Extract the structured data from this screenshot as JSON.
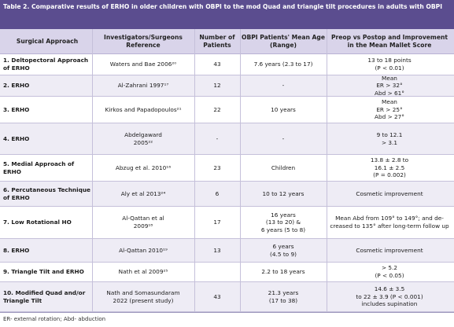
{
  "caption": {
    "label": "Table 2.",
    "text": "Comparative results of ERHO in older children with OBPI to the mod Quad and triangle tilt procedures in adults with OBPI"
  },
  "headers": [
    "Surgical Approach",
    "Investigators/Surgeons Reference",
    "Number of Patients",
    "OBPI Patients' Mean Age (Range)",
    "Preop vs Postop and Improvement in the Mean Mallet Score"
  ],
  "rows": [
    {
      "approach": [
        "1. Deltopectoral Approach",
        "of ERHO"
      ],
      "investigators": [
        "Waters and Bae 2006²⁰"
      ],
      "patients": "43",
      "age": [
        "7.6 years (2.3 to 17)"
      ],
      "result": [
        "13 to 18 points",
        "(P < 0.01)"
      ]
    },
    {
      "approach": [
        "2. ERHO"
      ],
      "investigators": [
        "Al-Zahrani 1997¹⁷"
      ],
      "patients": "12",
      "age": [
        "-"
      ],
      "result": [
        "Mean",
        "ER > 32°",
        "Abd > 61°"
      ]
    },
    {
      "approach": [
        "3. ERHO"
      ],
      "investigators": [
        "Kirkos and Papadopoulos²¹"
      ],
      "patients": "22",
      "age": [
        "10 years"
      ],
      "result": [
        "Mean",
        "ER > 25°",
        "Abd > 27°"
      ]
    },
    {
      "approach": [
        "4. ERHO"
      ],
      "investigators": [
        "Abdelgaward",
        "2005²²"
      ],
      "patients": "-",
      "age": [
        "-"
      ],
      "result": [
        "9 to 12.1",
        "> 3.1"
      ]
    },
    {
      "approach": [
        "5. Medial Approach of",
        "ERHO"
      ],
      "investigators": [
        "Abzug et al. 2010¹⁶"
      ],
      "patients": "23",
      "age": [
        "Children"
      ],
      "result": [
        "13.8 ± 2.8 to",
        "16.1 ± 2.5",
        "(P = 0.002)"
      ]
    },
    {
      "approach": [
        "6. Percutaneous Technique",
        "of ERHO"
      ],
      "investigators": [
        "Aly et al 2013²⁴"
      ],
      "patients": "6",
      "age": [
        "10 to 12 years"
      ],
      "result": [
        "Cosmetic improvement"
      ]
    },
    {
      "approach": [
        "7. Low Rotational HO"
      ],
      "investigators": [
        "Al-Qattan et al",
        "2009¹⁸"
      ],
      "patients": "17",
      "age": [
        "16 years",
        "(13 to 20) &",
        "6 years (5 to 8)"
      ],
      "result": [
        "Mean Abd from 109° to 149°; and de-",
        "creased to 135° after long-term follow up"
      ]
    },
    {
      "approach": [
        "8. ERHO"
      ],
      "investigators": [
        "Al-Qattan 2010¹⁹"
      ],
      "patients": "13",
      "age": [
        "6 years",
        "(4.5 to 9)"
      ],
      "result": [
        "Cosmetic improvement"
      ]
    },
    {
      "approach": [
        "9. Triangle Tilt and ERHO"
      ],
      "investigators": [
        "Nath et al 2009²⁵"
      ],
      "patients": "",
      "age": [
        "2.2 to 18 years"
      ],
      "result": [
        "> 5.2",
        "(P < 0.05)"
      ]
    },
    {
      "approach": [
        "10. Modified Quad and/or",
        "Triangle Tilt"
      ],
      "investigators": [
        "Nath and Somasundaram",
        "2022 (present study)"
      ],
      "patients": "43",
      "age": [
        "21.3 years",
        "(17 to 38)"
      ],
      "result": [
        "14.6 ± 3.5",
        "to 22 ± 3.9 (P < 0.001)",
        "includes supination"
      ]
    }
  ],
  "footnote": "ER- external rotation; Abd- abduction"
}
